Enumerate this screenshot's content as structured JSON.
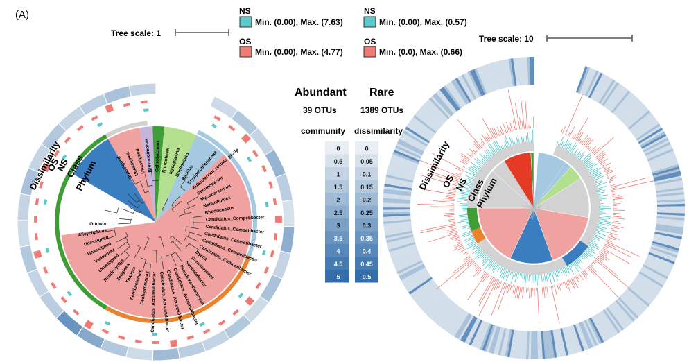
{
  "panel_label": "(A)",
  "left": {
    "tree_scale": "Tree scale: 1",
    "ring_labels": [
      "Dissimilarity",
      "OS",
      "NS",
      "Class",
      "Phylum"
    ],
    "leaves_upper": [
      "Unassigned",
      "Unassigned",
      "Unassigned",
      "Brevundimonas",
      "Ochrobactrum",
      "Rhodoferax",
      "Mycoplasma",
      "Bdellovibrio",
      "Bacillus",
      "Erysipelotrichaceae",
      "Eubacterium_rectale_group",
      "Gemmobacter",
      "Mycobacterium",
      "Nocardioides",
      "Rhodococcus"
    ],
    "leaves_right": [
      "Candidatus_Competibacter",
      "Candidatus_Competibacter",
      "Candidatus_Competibacter",
      "Candidatus_Competibacter",
      "Candidatus_Competibacter",
      "Dyella",
      "Thermomonas",
      "Steroidobacter",
      "Pseudoxanthomonas",
      "Candidatus_Accumulibacter",
      "Candidatus_Accumulibacter",
      "Candidatus_Accumulibacter",
      "Candidatus_Accumulibacter",
      "Dechloromonas"
    ],
    "leaves_lower": [
      "Ferribacterium",
      "Thauera",
      "Zoogloea",
      "Rhodocyclus",
      "Unassigned",
      "Variovorax",
      "Unassigned",
      "Unassigned",
      "Alicycliphilus",
      "Ottowia"
    ]
  },
  "right": {
    "tree_scale": "Tree scale: 10",
    "ring_labels": [
      "Dissimilarity",
      "OS",
      "NS",
      "Class",
      "Phylum"
    ]
  },
  "legends": {
    "left_ns_title": "NS",
    "left_ns_range": "Min. (0.00), Max. (7.63)",
    "left_os_title": "OS",
    "left_os_range": "Min. (0.00), Max. (4.77)",
    "right_ns_title": "NS",
    "right_ns_range": "Min. (0.00), Max. (0.57)",
    "right_os_title": "OS",
    "right_os_range": "Min. (0.0), Max. (0.66)",
    "ns_color": "#5bc9c9",
    "os_color": "#ee7b74"
  },
  "center": {
    "abundant_title": "Abundant",
    "abundant_count": "39 OTUs",
    "rare_title": "Rare",
    "rare_count": "1389 OTUs",
    "dissimilarity_title_left": "community",
    "dissimilarity_title_right": "dissimilarity",
    "scale_abundant": [
      "0",
      "0.5",
      "1",
      "1.5",
      "2",
      "2.5",
      "3",
      "3.5",
      "4",
      "4.5",
      "5"
    ],
    "scale_rare": [
      "0",
      "0.05",
      "0.1",
      "0.15",
      "0.2",
      "0.25",
      "0.3",
      "0.35",
      "0.4",
      "0.45",
      "0.5"
    ]
  },
  "colors": {
    "pink": "#f0a2a0",
    "blue": "#3b7ec0",
    "green": "#3e9d34",
    "lightgreen": "#b3df8e",
    "lightblue": "#a6c9e2",
    "orange": "#e9832e",
    "red": "#e53a24",
    "gray": "#d2d2d2",
    "lavender": "#c7b4dc"
  }
}
